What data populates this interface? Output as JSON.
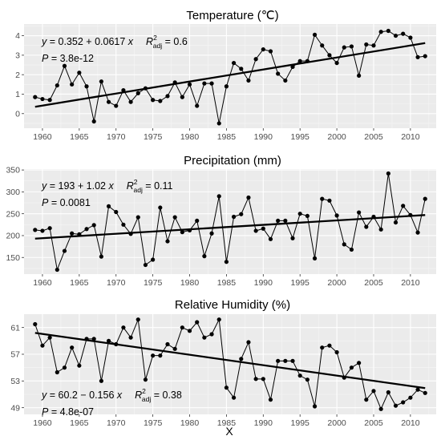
{
  "xlabel": "X",
  "chart_data": [
    {
      "type": "line",
      "title": "Temperature (℃)",
      "x": [
        1959,
        1960,
        1961,
        1962,
        1963,
        1964,
        1965,
        1966,
        1967,
        1968,
        1969,
        1970,
        1971,
        1972,
        1973,
        1974,
        1975,
        1976,
        1977,
        1978,
        1979,
        1980,
        1981,
        1982,
        1983,
        1984,
        1985,
        1986,
        1987,
        1988,
        1989,
        1990,
        1991,
        1992,
        1993,
        1994,
        1995,
        1996,
        1997,
        1998,
        1999,
        2000,
        2001,
        2002,
        2003,
        2004,
        2005,
        2006,
        2007,
        2008,
        2009,
        2010,
        2011,
        2012
      ],
      "series": [
        {
          "values": [
            0.85,
            0.75,
            0.7,
            1.45,
            2.45,
            1.5,
            2.1,
            1.4,
            -0.4,
            1.65,
            0.6,
            0.4,
            1.2,
            0.6,
            1.05,
            1.3,
            0.7,
            0.65,
            0.9,
            1.6,
            0.85,
            1.5,
            0.4,
            1.55,
            1.55,
            -0.5,
            1.4,
            2.6,
            2.3,
            1.7,
            2.8,
            3.3,
            3.2,
            2.05,
            1.7,
            2.4,
            2.7,
            2.7,
            4.05,
            3.5,
            3.0,
            2.6,
            3.4,
            3.45,
            1.95,
            3.55,
            3.5,
            4.2,
            4.25,
            4.0,
            4.1,
            3.9,
            2.9,
            2.95
          ]
        }
      ],
      "trend": {
        "x": [
          1959,
          2012
        ],
        "y": [
          0.352,
          3.622
        ]
      },
      "yticks": [
        0,
        1,
        2,
        3,
        4
      ],
      "ylim": [
        -0.75,
        4.6
      ],
      "xlim": [
        1957.5,
        2013.5
      ],
      "xticks": [
        1960,
        1965,
        1970,
        1975,
        1980,
        1985,
        1990,
        1995,
        2000,
        2005,
        2010
      ],
      "annotation": {
        "eq_a": "0.352",
        "eq_sign": "+",
        "eq_b": "0.0617",
        "r2": "0.6",
        "p": "3.8e-12"
      },
      "annotation_pos": "top-left",
      "grid": true
    },
    {
      "type": "line",
      "title": "Precipitation (mm)",
      "x": [
        1959,
        1960,
        1961,
        1962,
        1963,
        1964,
        1965,
        1966,
        1967,
        1968,
        1969,
        1970,
        1971,
        1972,
        1973,
        1974,
        1975,
        1976,
        1977,
        1978,
        1979,
        1980,
        1981,
        1982,
        1983,
        1984,
        1985,
        1986,
        1987,
        1988,
        1989,
        1990,
        1991,
        1992,
        1993,
        1994,
        1995,
        1996,
        1997,
        1998,
        1999,
        2000,
        2001,
        2002,
        2003,
        2004,
        2005,
        2006,
        2007,
        2008,
        2009,
        2010,
        2011,
        2012
      ],
      "series": [
        {
          "values": [
            213,
            211,
            217,
            122,
            165,
            205,
            203,
            215,
            224,
            152,
            267,
            254,
            225,
            204,
            242,
            133,
            145,
            264,
            187,
            242,
            208,
            212,
            234,
            153,
            205,
            290,
            140,
            243,
            249,
            287,
            211,
            216,
            192,
            234,
            234,
            194,
            250,
            245,
            148,
            284,
            280,
            246,
            180,
            168,
            253,
            220,
            243,
            214,
            342,
            230,
            268,
            247,
            207,
            284
          ]
        }
      ],
      "trend": {
        "x": [
          1959,
          2012
        ],
        "y": [
          193,
          247
        ]
      },
      "yticks": [
        150,
        200,
        250,
        300,
        350
      ],
      "ylim": [
        112,
        352
      ],
      "xlim": [
        1957.5,
        2013.5
      ],
      "xticks": [
        1960,
        1965,
        1970,
        1975,
        1980,
        1985,
        1990,
        1995,
        2000,
        2005,
        2010
      ],
      "annotation": {
        "eq_a": "193",
        "eq_sign": "+",
        "eq_b": "1.02",
        "r2": "0.11",
        "p": "0.0081"
      },
      "annotation_pos": "top-left",
      "grid": true
    },
    {
      "type": "line",
      "title": "Relative Humidity (%)",
      "x": [
        1959,
        1960,
        1961,
        1962,
        1963,
        1964,
        1965,
        1966,
        1967,
        1968,
        1969,
        1970,
        1971,
        1972,
        1973,
        1974,
        1975,
        1976,
        1977,
        1978,
        1979,
        1980,
        1981,
        1982,
        1983,
        1984,
        1985,
        1986,
        1987,
        1988,
        1989,
        1990,
        1991,
        1992,
        1993,
        1994,
        1995,
        1996,
        1997,
        1998,
        1999,
        2000,
        2001,
        2002,
        2003,
        2004,
        2005,
        2006,
        2007,
        2008,
        2009,
        2010,
        2011,
        2012
      ],
      "series": [
        {
          "values": [
            61.5,
            58.3,
            59.5,
            54.3,
            55.0,
            58.0,
            55.3,
            59.3,
            59.3,
            53.0,
            59.0,
            58.5,
            61.0,
            59.5,
            62.2,
            53.2,
            56.8,
            56.8,
            58.5,
            57.8,
            61.0,
            60.5,
            61.8,
            59.5,
            60.0,
            62.2,
            52.0,
            50.5,
            56.3,
            58.8,
            53.3,
            53.3,
            50.2,
            56.0,
            56.0,
            56.0,
            53.8,
            53.2,
            49.2,
            58.0,
            58.3,
            57.3,
            53.5,
            55.0,
            55.7,
            50.2,
            51.5,
            48.8,
            51.3,
            49.3,
            49.8,
            50.5,
            51.7,
            51.2
          ]
        }
      ],
      "trend": {
        "x": [
          1959,
          2012
        ],
        "y": [
          60.2,
          51.93
        ]
      },
      "yticks": [
        49,
        53,
        57,
        61
      ],
      "ylim": [
        48.0,
        63.0
      ],
      "xlim": [
        1957.5,
        2013.5
      ],
      "xticks": [
        1960,
        1965,
        1970,
        1975,
        1980,
        1985,
        1990,
        1995,
        2000,
        2005,
        2010
      ],
      "annotation": {
        "eq_a": "60.2",
        "eq_sign": "−",
        "eq_b": "0.156",
        "r2": "0.38",
        "p": "4.8e-07"
      },
      "annotation_pos": "bottom-left",
      "grid": true
    }
  ]
}
